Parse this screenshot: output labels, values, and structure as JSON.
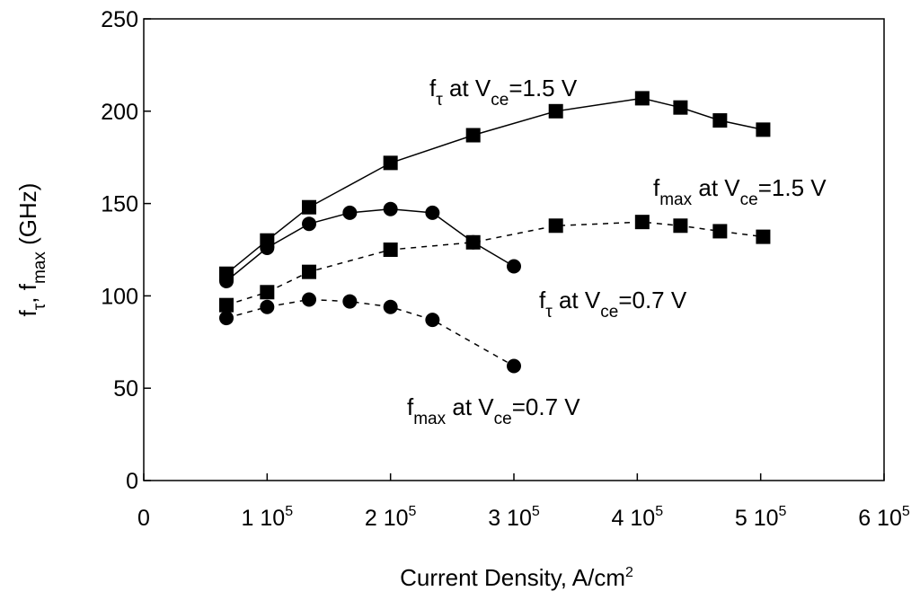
{
  "chart_data": {
    "type": "line",
    "xlabel_main": "Current Density, A/cm",
    "xlabel_sup": "2",
    "ylabel_parts": [
      {
        "t": "f",
        "s": "base"
      },
      {
        "t": "τ",
        "s": "sub"
      },
      {
        "t": ", f",
        "s": "base"
      },
      {
        "t": "max",
        "s": "sub"
      },
      {
        "t": " (GHz)",
        "s": "base"
      }
    ],
    "xlim": [
      0,
      600000
    ],
    "ylim": [
      0,
      250
    ],
    "grid": false,
    "x_ticks": [
      {
        "value": 0,
        "main": "0",
        "exp": ""
      },
      {
        "value": 100000,
        "main": "1 10",
        "exp": "5"
      },
      {
        "value": 200000,
        "main": "2 10",
        "exp": "5"
      },
      {
        "value": 300000,
        "main": "3 10",
        "exp": "5"
      },
      {
        "value": 400000,
        "main": "4 10",
        "exp": "5"
      },
      {
        "value": 500000,
        "main": "5 10",
        "exp": "5"
      },
      {
        "value": 600000,
        "main": "6 10",
        "exp": "5"
      }
    ],
    "y_ticks": [
      {
        "value": 0,
        "label": "0"
      },
      {
        "value": 50,
        "label": "50"
      },
      {
        "value": 100,
        "label": "100"
      },
      {
        "value": 150,
        "label": "150"
      },
      {
        "value": 200,
        "label": "200"
      },
      {
        "value": 250,
        "label": "250"
      }
    ],
    "series": [
      {
        "id": "ft-1-5",
        "marker": "square",
        "dash": "solid",
        "points": [
          [
            67000,
            112
          ],
          [
            100000,
            130
          ],
          [
            134000,
            148
          ],
          [
            200000,
            172
          ],
          [
            267000,
            187
          ],
          [
            334000,
            200
          ],
          [
            404000,
            207
          ],
          [
            435000,
            202
          ],
          [
            467000,
            195
          ],
          [
            502000,
            190
          ]
        ]
      },
      {
        "id": "fmax-1-5",
        "marker": "square",
        "dash": "dashed",
        "points": [
          [
            67000,
            95
          ],
          [
            100000,
            102
          ],
          [
            134000,
            113
          ],
          [
            200000,
            125
          ],
          [
            267000,
            129
          ],
          [
            334000,
            138
          ],
          [
            404000,
            140
          ],
          [
            435000,
            138
          ],
          [
            467000,
            135
          ],
          [
            502000,
            132
          ]
        ]
      },
      {
        "id": "ft-0-7",
        "marker": "circle",
        "dash": "solid",
        "points": [
          [
            67000,
            108
          ],
          [
            100000,
            126
          ],
          [
            134000,
            139
          ],
          [
            167000,
            145
          ],
          [
            200000,
            147
          ],
          [
            234000,
            145
          ],
          [
            267000,
            129
          ],
          [
            300000,
            116
          ]
        ]
      },
      {
        "id": "fmax-0-7",
        "marker": "circle",
        "dash": "dashed",
        "points": [
          [
            67000,
            88
          ],
          [
            100000,
            94
          ],
          [
            134000,
            98
          ],
          [
            167000,
            97
          ],
          [
            200000,
            94
          ],
          [
            234000,
            87
          ],
          [
            300000,
            62
          ]
        ]
      }
    ],
    "annotations": [
      {
        "id": "ft-1-5",
        "parts": [
          {
            "t": "f",
            "s": "base"
          },
          {
            "t": "τ",
            "s": "sub"
          },
          {
            "t": " at V",
            "s": "base"
          },
          {
            "t": "ce",
            "s": "sub"
          },
          {
            "t": "=1.5 V",
            "s": "base"
          }
        ]
      },
      {
        "id": "fmax-1-5",
        "parts": [
          {
            "t": "f",
            "s": "base"
          },
          {
            "t": "max",
            "s": "sub"
          },
          {
            "t": " at V",
            "s": "base"
          },
          {
            "t": "ce",
            "s": "sub"
          },
          {
            "t": "=1.5 V",
            "s": "base"
          }
        ]
      },
      {
        "id": "ft-0-7",
        "parts": [
          {
            "t": "f",
            "s": "base"
          },
          {
            "t": "τ",
            "s": "sub"
          },
          {
            "t": " at V",
            "s": "base"
          },
          {
            "t": "ce",
            "s": "sub"
          },
          {
            "t": "=0.7 V",
            "s": "base"
          }
        ]
      },
      {
        "id": "fmax-0-7",
        "parts": [
          {
            "t": "f",
            "s": "base"
          },
          {
            "t": "max",
            "s": "sub"
          },
          {
            "t": " at V",
            "s": "base"
          },
          {
            "t": "ce",
            "s": "sub"
          },
          {
            "t": "=0.7 V",
            "s": "base"
          }
        ]
      }
    ]
  }
}
